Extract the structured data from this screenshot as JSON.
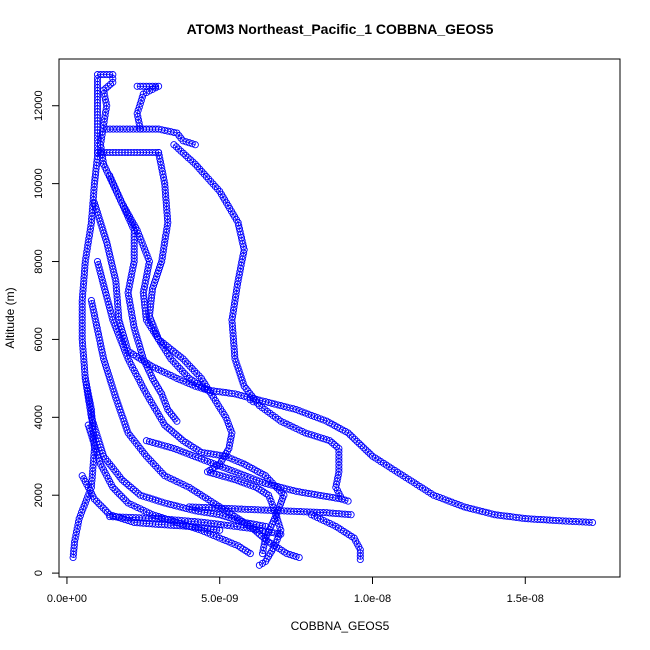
{
  "chart_data": {
    "type": "scatter",
    "title": "ATOM3 Northeast_Pacific_1 COBBNA_GEOS5",
    "xlabel": "COBBNA_GEOS5",
    "ylabel": "Altitude (m)",
    "xlim": [
      -2.6e-10,
      1.81e-08
    ],
    "ylim": [
      -100,
      13200
    ],
    "x_ticks": [
      {
        "value": 0,
        "label": "0.0e+00"
      },
      {
        "value": 5e-09,
        "label": "5.0e-09"
      },
      {
        "value": 1e-08,
        "label": "1.0e-08"
      },
      {
        "value": 1.5e-08,
        "label": "1.5e-08"
      }
    ],
    "y_ticks": [
      {
        "value": 0,
        "label": "0"
      },
      {
        "value": 2000,
        "label": "2000"
      },
      {
        "value": 4000,
        "label": "4000"
      },
      {
        "value": 6000,
        "label": "6000"
      },
      {
        "value": 8000,
        "label": "8000"
      },
      {
        "value": 10000,
        "label": "10000"
      },
      {
        "value": 12000,
        "label": "12000"
      }
    ],
    "grid": false,
    "marker": "open-circle",
    "color": "#0000ff",
    "series": [
      {
        "values": [
          [
            2e-10,
            400
          ],
          [
            2.5e-10,
            800
          ],
          [
            4e-10,
            1400
          ],
          [
            8e-10,
            2200
          ],
          [
            9e-10,
            3200
          ],
          [
            8e-10,
            4200
          ],
          [
            6e-10,
            5000
          ],
          [
            5e-10,
            6000
          ],
          [
            5e-10,
            7000
          ],
          [
            6e-10,
            8000
          ],
          [
            8e-10,
            9000
          ],
          [
            9e-10,
            10000
          ],
          [
            1e-09,
            10700
          ],
          [
            1e-09,
            11300
          ],
          [
            1e-09,
            12000
          ],
          [
            1e-09,
            12700
          ]
        ]
      },
      {
        "values": [
          [
            1e-09,
            12800
          ],
          [
            1.5e-09,
            12800
          ],
          [
            1.5e-09,
            12600
          ],
          [
            1.2e-09,
            12400
          ],
          [
            1.3e-09,
            12000
          ],
          [
            1.2e-09,
            11500
          ],
          [
            1.1e-09,
            11000
          ],
          [
            1.2e-09,
            10500
          ]
        ]
      },
      {
        "values": [
          [
            1.3e-09,
            11400
          ],
          [
            2.5e-09,
            11400
          ],
          [
            3e-09,
            11400
          ],
          [
            3.6e-09,
            11300
          ],
          [
            3.8e-09,
            11100
          ],
          [
            4.2e-09,
            11000
          ]
        ]
      },
      {
        "values": [
          [
            2.3e-09,
            12500
          ],
          [
            2.5e-09,
            12500
          ],
          [
            3e-09,
            12500
          ],
          [
            2.5e-09,
            12300
          ],
          [
            2.3e-09,
            11800
          ],
          [
            2.4e-09,
            11400
          ]
        ]
      },
      {
        "values": [
          [
            1e-09,
            10800
          ],
          [
            2e-09,
            10800
          ],
          [
            2.5e-09,
            10800
          ],
          [
            3e-09,
            10800
          ]
        ]
      },
      {
        "values": [
          [
            3.5e-09,
            11000
          ],
          [
            4.2e-09,
            10500
          ],
          [
            5e-09,
            9800
          ],
          [
            5.6e-09,
            9000
          ],
          [
            5.8e-09,
            8300
          ],
          [
            5.6e-09,
            7500
          ],
          [
            5.4e-09,
            6500
          ],
          [
            5.5e-09,
            5500
          ],
          [
            5.8e-09,
            4800
          ],
          [
            6.3e-09,
            4300
          ],
          [
            7e-09,
            3900
          ],
          [
            7.8e-09,
            3600
          ],
          [
            8.6e-09,
            3400
          ],
          [
            8.9e-09,
            3200
          ],
          [
            8.9e-09,
            2600
          ],
          [
            8.8e-09,
            2200
          ],
          [
            9e-09,
            1900
          ],
          [
            9.2e-09,
            1850
          ]
        ]
      },
      {
        "values": [
          [
            3e-09,
            10800
          ],
          [
            3.2e-09,
            10000
          ],
          [
            3.3e-09,
            9000
          ],
          [
            3.1e-09,
            8000
          ],
          [
            2.8e-09,
            7300
          ],
          [
            2.7e-09,
            6600
          ],
          [
            3e-09,
            6000
          ],
          [
            3.4e-09,
            5500
          ],
          [
            4e-09,
            5000
          ],
          [
            4.6e-09,
            4700
          ],
          [
            5.5e-09,
            4600
          ],
          [
            6.5e-09,
            4400
          ],
          [
            7.5e-09,
            4200
          ],
          [
            8.5e-09,
            3900
          ],
          [
            9.2e-09,
            3600
          ],
          [
            1e-08,
            3000
          ],
          [
            1.1e-08,
            2500
          ],
          [
            1.2e-08,
            2000
          ],
          [
            1.3e-08,
            1700
          ],
          [
            1.4e-08,
            1500
          ],
          [
            1.5e-08,
            1400
          ],
          [
            1.6e-08,
            1350
          ],
          [
            1.72e-08,
            1300
          ]
        ]
      },
      {
        "values": [
          [
            1.2e-09,
            10500
          ],
          [
            1.8e-09,
            9500
          ],
          [
            2.3e-09,
            8800
          ],
          [
            2.7e-09,
            8000
          ],
          [
            2.5e-09,
            7200
          ],
          [
            2.6e-09,
            6500
          ],
          [
            3e-09,
            6000
          ],
          [
            3.8e-09,
            5500
          ],
          [
            4.4e-09,
            5000
          ],
          [
            4.8e-09,
            4500
          ],
          [
            5.2e-09,
            4000
          ],
          [
            5.4e-09,
            3600
          ],
          [
            5.3e-09,
            3200
          ],
          [
            5e-09,
            2800
          ],
          [
            4.6e-09,
            2600
          ],
          [
            5.5e-09,
            2400
          ],
          [
            6.2e-09,
            2200
          ],
          [
            6.6e-09,
            2000
          ],
          [
            6.8e-09,
            1600
          ],
          [
            7e-09,
            1100
          ],
          [
            6.8e-09,
            700
          ],
          [
            6.5e-09,
            300
          ],
          [
            6.3e-09,
            200
          ]
        ]
      },
      {
        "values": [
          [
            9e-10,
            9500
          ],
          [
            1.3e-09,
            8500
          ],
          [
            1.6e-09,
            7500
          ],
          [
            1.7e-09,
            6500
          ],
          [
            2e-09,
            5700
          ],
          [
            2.8e-09,
            5300
          ],
          [
            3.6e-09,
            5000
          ],
          [
            4.2e-09,
            4800
          ],
          [
            4.6e-09,
            4700
          ]
        ]
      },
      {
        "values": [
          [
            1e-09,
            8000
          ],
          [
            1.5e-09,
            6500
          ],
          [
            2e-09,
            5500
          ],
          [
            2.6e-09,
            4600
          ],
          [
            3.2e-09,
            3800
          ],
          [
            3.8e-09,
            3400
          ],
          [
            4.4e-09,
            3100
          ],
          [
            5.2e-09,
            3000
          ],
          [
            5.8e-09,
            2800
          ],
          [
            6.5e-09,
            2500
          ],
          [
            7.1e-09,
            2000
          ],
          [
            6.8e-09,
            1400
          ],
          [
            6.5e-09,
            900
          ],
          [
            6.4e-09,
            500
          ]
        ]
      },
      {
        "values": [
          [
            8e-10,
            7000
          ],
          [
            1.2e-09,
            5500
          ],
          [
            1.6e-09,
            4500
          ],
          [
            2e-09,
            3600
          ],
          [
            2.6e-09,
            3000
          ],
          [
            3.2e-09,
            2500
          ],
          [
            4e-09,
            2200
          ],
          [
            4.8e-09,
            1800
          ],
          [
            5.4e-09,
            1500
          ],
          [
            6e-09,
            1200
          ],
          [
            6.6e-09,
            800
          ],
          [
            7.2e-09,
            500
          ],
          [
            7.6e-09,
            400
          ]
        ]
      },
      {
        "values": [
          [
            6e-10,
            5000
          ],
          [
            8e-10,
            4000
          ],
          [
            1.2e-09,
            3000
          ],
          [
            1.8e-09,
            2400
          ],
          [
            2.4e-09,
            2000
          ],
          [
            3.2e-09,
            1800
          ],
          [
            4.2e-09,
            1600
          ],
          [
            5e-09,
            1500
          ],
          [
            5.8e-09,
            1300
          ],
          [
            6.5e-09,
            1200
          ]
        ]
      },
      {
        "values": [
          [
            7e-10,
            3800
          ],
          [
            1.1e-09,
            2800
          ],
          [
            1.5e-09,
            2200
          ],
          [
            2e-09,
            1800
          ],
          [
            2.8e-09,
            1500
          ],
          [
            3.6e-09,
            1300
          ],
          [
            4.4e-09,
            1100
          ],
          [
            5e-09,
            900
          ],
          [
            5.6e-09,
            700
          ],
          [
            6e-09,
            500
          ]
        ]
      },
      {
        "values": [
          [
            5e-10,
            2500
          ],
          [
            9e-10,
            1900
          ],
          [
            1.4e-09,
            1500
          ],
          [
            2.2e-09,
            1300
          ],
          [
            3e-09,
            1250
          ],
          [
            4e-09,
            1200
          ],
          [
            5e-09,
            1100
          ]
        ]
      },
      {
        "values": [
          [
            1.4e-09,
            10200
          ],
          [
            1.8e-09,
            9500
          ],
          [
            2.2e-09,
            8800
          ],
          [
            2.2e-09,
            8000
          ],
          [
            2e-09,
            7200
          ],
          [
            2.2e-09,
            6300
          ],
          [
            2.5e-09,
            5500
          ],
          [
            2.8e-09,
            5000
          ],
          [
            3.1e-09,
            4600
          ],
          [
            3.3e-09,
            4200
          ],
          [
            3.6e-09,
            3900
          ]
        ]
      },
      {
        "values": [
          [
            2.6e-09,
            3400
          ],
          [
            3.5e-09,
            3200
          ],
          [
            4.5e-09,
            2900
          ],
          [
            5.5e-09,
            2600
          ],
          [
            6.5e-09,
            2300
          ],
          [
            7.5e-09,
            2100
          ],
          [
            9e-09,
            1900
          ]
        ]
      },
      {
        "values": [
          [
            6e-09,
            4450
          ],
          [
            6.1e-09,
            4400
          ]
        ]
      },
      {
        "values": [
          [
            8e-09,
            1500
          ],
          [
            8.8e-09,
            1200
          ],
          [
            9.4e-09,
            900
          ],
          [
            9.6e-09,
            600
          ],
          [
            9.6e-09,
            350
          ]
        ]
      },
      {
        "values": [
          [
            4e-09,
            1700
          ],
          [
            5.5e-09,
            1650
          ],
          [
            7e-09,
            1600
          ],
          [
            8.5e-09,
            1550
          ],
          [
            9.3e-09,
            1500
          ]
        ]
      },
      {
        "values": [
          [
            1.4e-09,
            1450
          ],
          [
            3e-09,
            1400
          ],
          [
            4.5e-09,
            1300
          ],
          [
            6e-09,
            1150
          ],
          [
            7e-09,
            1000
          ]
        ]
      }
    ]
  }
}
